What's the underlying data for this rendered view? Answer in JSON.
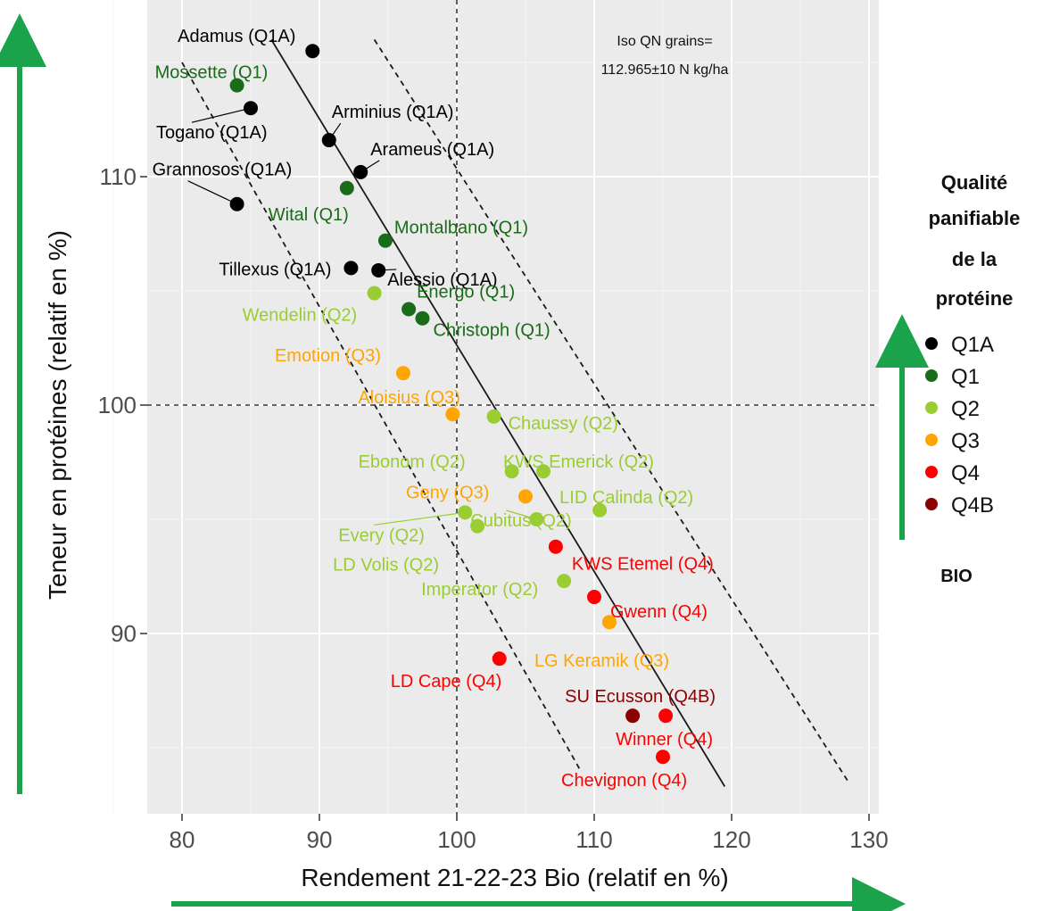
{
  "chart_data": {
    "type": "scatter",
    "title": "",
    "xlabel": "Rendement 21-22-23 Bio (relatif en %)",
    "ylabel": "Teneur en protéines (relatif en %)",
    "xlim": [
      77.5,
      131.5
    ],
    "ylim": [
      82,
      118
    ],
    "x_ticks": [
      80,
      90,
      100,
      110,
      120,
      130
    ],
    "y_ticks": [
      90,
      100,
      110
    ],
    "grid": true,
    "legend_position": "right",
    "legend": {
      "title": [
        "Qualité",
        "panifiable",
        "de la",
        "protéine"
      ],
      "entries": [
        "Q1A",
        "Q1",
        "Q2",
        "Q3",
        "Q4",
        "Q4B"
      ],
      "footer": "BIO"
    },
    "colors": {
      "Q1A": "#000000",
      "Q1": "#1a6b1a",
      "Q2": "#9acd32",
      "Q3": "#ffa500",
      "Q4": "#ff0000",
      "Q4B": "#8b0000"
    },
    "annotation": [
      "Iso QN grains=",
      "112.965±10 N kg/ha"
    ],
    "reference_lines": {
      "x": 100,
      "y": 100
    },
    "iso_lines": [
      {
        "style": "solid",
        "from": [
          86.5,
          116.0
        ],
        "to": [
          119.5,
          83.3
        ]
      },
      {
        "style": "dashed",
        "from": [
          80.0,
          115.0
        ],
        "to": [
          109.0,
          84.0
        ]
      },
      {
        "style": "dashed",
        "from": [
          94.0,
          116.0
        ],
        "to": [
          128.5,
          83.5
        ]
      }
    ],
    "points": [
      {
        "name": "Adamus (Q1A)",
        "group": "Q1A",
        "x": 89.5,
        "y": 115.5
      },
      {
        "name": "Togano (Q1A)",
        "group": "Q1A",
        "x": 85.0,
        "y": 113.0
      },
      {
        "name": "Arminius (Q1A)",
        "group": "Q1A",
        "x": 90.7,
        "y": 111.6
      },
      {
        "name": "Arameus (Q1A)",
        "group": "Q1A",
        "x": 93.0,
        "y": 110.2
      },
      {
        "name": "Grannosos (Q1A)",
        "group": "Q1A",
        "x": 84.0,
        "y": 108.8
      },
      {
        "name": "Tillexus (Q1A)",
        "group": "Q1A",
        "x": 92.3,
        "y": 106.0
      },
      {
        "name": "Alessio (Q1A)",
        "group": "Q1A",
        "x": 94.3,
        "y": 105.9
      },
      {
        "name": "Mossette (Q1)",
        "group": "Q1",
        "x": 84.0,
        "y": 114.0
      },
      {
        "name": "Wital (Q1)",
        "group": "Q1",
        "x": 92.0,
        "y": 109.5
      },
      {
        "name": "Montalbano (Q1)",
        "group": "Q1",
        "x": 94.8,
        "y": 107.2
      },
      {
        "name": "Energo (Q1)",
        "group": "Q1",
        "x": 96.5,
        "y": 104.2
      },
      {
        "name": "Christoph (Q1)",
        "group": "Q1",
        "x": 97.5,
        "y": 103.8
      },
      {
        "name": "Wendelin (Q2)",
        "group": "Q2",
        "x": 94.0,
        "y": 104.9
      },
      {
        "name": "Chaussy (Q2)",
        "group": "Q2",
        "x": 102.7,
        "y": 99.5
      },
      {
        "name": "Ebonom (Q2)",
        "group": "Q2",
        "x": 104.0,
        "y": 97.1
      },
      {
        "name": "KWS Emerick (Q2)",
        "group": "Q2",
        "x": 106.3,
        "y": 97.1
      },
      {
        "name": "LID Calinda (Q2)",
        "group": "Q2",
        "x": 110.4,
        "y": 95.4
      },
      {
        "name": "Every (Q2)",
        "group": "Q2",
        "x": 100.6,
        "y": 95.3
      },
      {
        "name": "LD Volis (Q2)",
        "group": "Q2",
        "x": 101.5,
        "y": 94.7
      },
      {
        "name": "Cubitus (Q2)",
        "group": "Q2",
        "x": 105.8,
        "y": 95.0
      },
      {
        "name": "Imperator (Q2)",
        "group": "Q2",
        "x": 107.8,
        "y": 92.3
      },
      {
        "name": "Emotion (Q3)",
        "group": "Q3",
        "x": 96.1,
        "y": 101.4
      },
      {
        "name": "Aloisius (Q3)",
        "group": "Q3",
        "x": 99.7,
        "y": 99.6
      },
      {
        "name": "Geny (Q3)",
        "group": "Q3",
        "x": 105.0,
        "y": 96.0
      },
      {
        "name": "LG Keramik (Q3)",
        "group": "Q3",
        "x": 111.1,
        "y": 90.5
      },
      {
        "name": "KWS Etemel (Q4)",
        "group": "Q4",
        "x": 107.2,
        "y": 93.8
      },
      {
        "name": "Gwenn (Q4)",
        "group": "Q4",
        "x": 110.0,
        "y": 91.6
      },
      {
        "name": "LD Cape (Q4)",
        "group": "Q4",
        "x": 103.1,
        "y": 88.9
      },
      {
        "name": "Winner (Q4)",
        "group": "Q4",
        "x": 115.2,
        "y": 86.4
      },
      {
        "name": "Chevignon (Q4)",
        "group": "Q4",
        "x": 115.0,
        "y": 84.6
      },
      {
        "name": "SU Ecusson (Q4B)",
        "group": "Q4B",
        "x": 112.8,
        "y": 86.4
      }
    ]
  }
}
